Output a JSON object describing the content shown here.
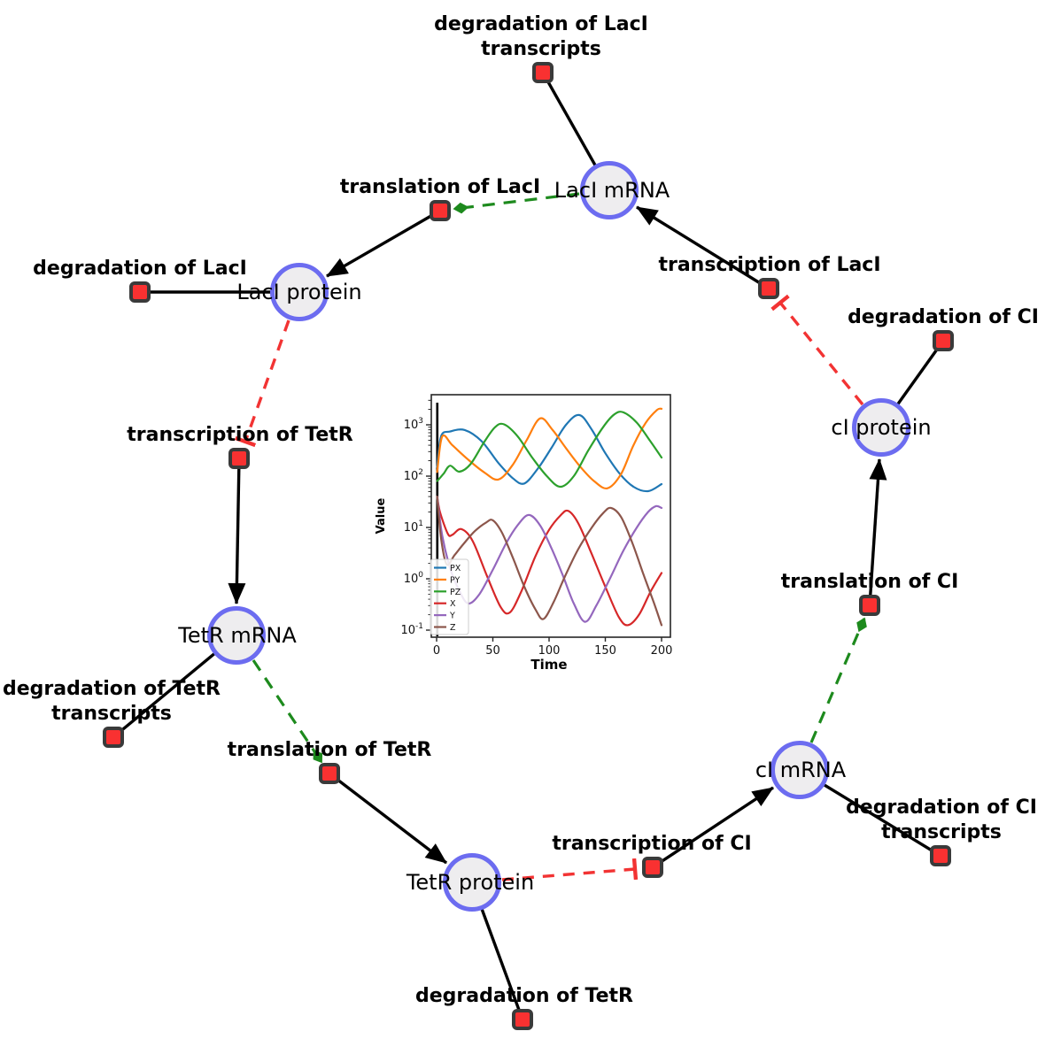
{
  "network": {
    "species": {
      "laci_mrna": "LacI mRNA",
      "laci_protein": "LacI protein",
      "tetr_mrna": "TetR mRNA",
      "tetr_protein": "TetR protein",
      "ci_mrna": "cI mRNA",
      "ci_protein": "cI protein"
    },
    "reactions": {
      "degradation_laci_transcripts": {
        "line1": "degradation of LacI",
        "line2": "transcripts"
      },
      "translation_laci": {
        "line1": "translation of LacI"
      },
      "transcription_laci": {
        "line1": "transcription of LacI"
      },
      "degradation_laci": {
        "line1": "degradation of LacI"
      },
      "degradation_ci": {
        "line1": "degradation of CI"
      },
      "transcription_tetr": {
        "line1": "transcription of TetR"
      },
      "degradation_tetr_transcripts": {
        "line1": "degradation of TetR",
        "line2": "transcripts"
      },
      "translation_tetr": {
        "line1": "translation of TetR"
      },
      "degradation_tetr": {
        "line1": "degradation of TetR"
      },
      "transcription_ci": {
        "line1": "transcription of CI"
      },
      "degradation_ci_transcripts": {
        "line1": "degradation of CI",
        "line2": "transcripts"
      },
      "translation_ci": {
        "line1": "translation of CI"
      }
    },
    "edges": [
      {
        "from": "LacI mRNA",
        "to": "degradation of LacI transcripts",
        "type": "consumption"
      },
      {
        "from": "translation of LacI",
        "to": "LacI protein",
        "type": "production"
      },
      {
        "from": "transcription of LacI",
        "to": "LacI mRNA",
        "type": "production"
      },
      {
        "from": "LacI protein",
        "to": "degradation of LacI",
        "type": "consumption"
      },
      {
        "from": "transcription of TetR",
        "to": "TetR mRNA",
        "type": "production"
      },
      {
        "from": "TetR mRNA",
        "to": "degradation of TetR transcripts",
        "type": "consumption"
      },
      {
        "from": "translation of TetR",
        "to": "TetR protein",
        "type": "production"
      },
      {
        "from": "TetR protein",
        "to": "degradation of TetR",
        "type": "consumption"
      },
      {
        "from": "transcription of CI",
        "to": "cI mRNA",
        "type": "production"
      },
      {
        "from": "cI mRNA",
        "to": "degradation of CI transcripts",
        "type": "consumption"
      },
      {
        "from": "translation of CI",
        "to": "cI protein",
        "type": "production"
      },
      {
        "from": "cI protein",
        "to": "degradation of CI",
        "type": "consumption"
      },
      {
        "from": "LacI mRNA",
        "to": "translation of LacI",
        "type": "modifier"
      },
      {
        "from": "TetR mRNA",
        "to": "translation of TetR",
        "type": "modifier"
      },
      {
        "from": "cI mRNA",
        "to": "translation of CI",
        "type": "modifier"
      },
      {
        "from": "LacI protein",
        "to": "transcription of TetR",
        "type": "inhibition"
      },
      {
        "from": "TetR protein",
        "to": "transcription of CI",
        "type": "inhibition"
      },
      {
        "from": "cI protein",
        "to": "transcription of LacI",
        "type": "inhibition"
      }
    ],
    "colors": {
      "species_fill": "#eeedef",
      "species_border": "#6c6cf0",
      "reaction_fill": "#f93131",
      "reaction_border": "#3a3a3a",
      "edge_black": "#000000",
      "edge_modifier_green": "#1d8a1d",
      "edge_inhibition_red": "#f23333"
    }
  },
  "chart_data": {
    "type": "line",
    "title": "",
    "xlabel": "Time",
    "ylabel": "Value",
    "yscale": "log",
    "x_ticks": [
      0,
      50,
      100,
      150,
      200
    ],
    "y_tick_exponents": [
      -1,
      0,
      1,
      2,
      3
    ],
    "xlim": [
      -9,
      209
    ],
    "ylim": [
      0.07,
      3900
    ],
    "grid": false,
    "legend_position": "lower left",
    "initial_spike_t": 0.6,
    "series": [
      {
        "name": "PX",
        "color": "#1f77b4",
        "points": [
          [
            0.5,
            150
          ],
          [
            4,
            600
          ],
          [
            12,
            740
          ],
          [
            25,
            790
          ],
          [
            40,
            480
          ],
          [
            55,
            180
          ],
          [
            68,
            90
          ],
          [
            78,
            72
          ],
          [
            90,
            140
          ],
          [
            102,
            350
          ],
          [
            115,
            1000
          ],
          [
            127,
            1550
          ],
          [
            138,
            800
          ],
          [
            150,
            280
          ],
          [
            163,
            110
          ],
          [
            175,
            62
          ],
          [
            188,
            51
          ],
          [
            200,
            70
          ]
        ]
      },
      {
        "name": "PY",
        "color": "#ff7f0e",
        "points": [
          [
            0.5,
            120
          ],
          [
            5,
            590
          ],
          [
            14,
            400
          ],
          [
            28,
            210
          ],
          [
            42,
            120
          ],
          [
            55,
            86
          ],
          [
            68,
            170
          ],
          [
            80,
            500
          ],
          [
            92,
            1330
          ],
          [
            103,
            800
          ],
          [
            115,
            350
          ],
          [
            128,
            150
          ],
          [
            140,
            80
          ],
          [
            152,
            58
          ],
          [
            164,
            110
          ],
          [
            175,
            400
          ],
          [
            186,
            1100
          ],
          [
            196,
            1950
          ],
          [
            200,
            2050
          ]
        ]
      },
      {
        "name": "PZ",
        "color": "#2ca02c",
        "points": [
          [
            0.5,
            80
          ],
          [
            6,
            110
          ],
          [
            12,
            160
          ],
          [
            20,
            122
          ],
          [
            30,
            170
          ],
          [
            42,
            450
          ],
          [
            52,
            900
          ],
          [
            60,
            1020
          ],
          [
            72,
            600
          ],
          [
            85,
            230
          ],
          [
            98,
            100
          ],
          [
            110,
            62
          ],
          [
            122,
            100
          ],
          [
            135,
            320
          ],
          [
            148,
            900
          ],
          [
            158,
            1600
          ],
          [
            166,
            1750
          ],
          [
            178,
            1100
          ],
          [
            190,
            480
          ],
          [
            200,
            230
          ]
        ]
      },
      {
        "name": "X",
        "color": "#d62728",
        "points": [
          [
            0.5,
            40
          ],
          [
            3,
            20
          ],
          [
            10,
            7.5
          ],
          [
            14,
            7.2
          ],
          [
            22,
            9.3
          ],
          [
            32,
            5.5
          ],
          [
            45,
            1.1
          ],
          [
            57,
            0.28
          ],
          [
            65,
            0.22
          ],
          [
            75,
            0.55
          ],
          [
            88,
            2.8
          ],
          [
            100,
            9
          ],
          [
            110,
            17
          ],
          [
            117,
            21
          ],
          [
            126,
            12
          ],
          [
            138,
            3
          ],
          [
            150,
            0.7
          ],
          [
            162,
            0.18
          ],
          [
            170,
            0.125
          ],
          [
            180,
            0.2
          ],
          [
            190,
            0.55
          ],
          [
            200,
            1.3
          ]
        ]
      },
      {
        "name": "Y",
        "color": "#9467bd",
        "points": [
          [
            0.5,
            40
          ],
          [
            5,
            7
          ],
          [
            12,
            1.6
          ],
          [
            20,
            0.6
          ],
          [
            28,
            0.33
          ],
          [
            38,
            0.5
          ],
          [
            50,
            1.5
          ],
          [
            62,
            5
          ],
          [
            72,
            11
          ],
          [
            82,
            17.5
          ],
          [
            92,
            11
          ],
          [
            102,
            4
          ],
          [
            112,
            1.2
          ],
          [
            122,
            0.33
          ],
          [
            132,
            0.145
          ],
          [
            142,
            0.3
          ],
          [
            154,
            1
          ],
          [
            166,
            3.5
          ],
          [
            178,
            10
          ],
          [
            188,
            20
          ],
          [
            195,
            26
          ],
          [
            200,
            24
          ]
        ]
      },
      {
        "name": "Z",
        "color": "#8c564b",
        "points": [
          [
            0.5,
            40
          ],
          [
            4,
            6
          ],
          [
            9,
            1.9
          ],
          [
            16,
            2.9
          ],
          [
            24,
            4.8
          ],
          [
            34,
            8.5
          ],
          [
            44,
            12.5
          ],
          [
            50,
            13.8
          ],
          [
            58,
            8
          ],
          [
            68,
            2.5
          ],
          [
            78,
            0.7
          ],
          [
            88,
            0.25
          ],
          [
            95,
            0.165
          ],
          [
            104,
            0.35
          ],
          [
            114,
            1.1
          ],
          [
            126,
            3.8
          ],
          [
            138,
            10
          ],
          [
            148,
            19
          ],
          [
            155,
            24
          ],
          [
            164,
            16
          ],
          [
            174,
            5
          ],
          [
            184,
            1.2
          ],
          [
            193,
            0.35
          ],
          [
            200,
            0.125
          ]
        ]
      }
    ]
  }
}
